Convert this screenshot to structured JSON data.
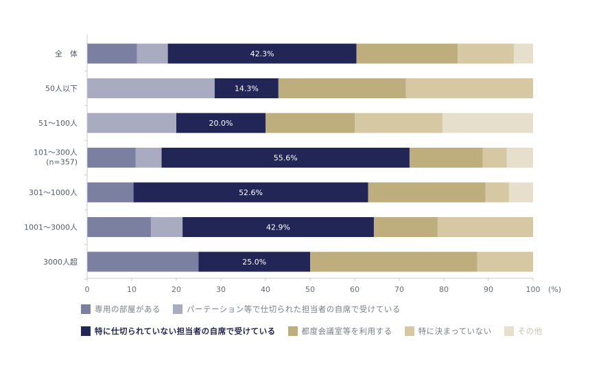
{
  "chart_data": {
    "type": "bar",
    "orientation": "horizontal",
    "stacked": true,
    "unit": "(%)",
    "xlim": [
      0,
      100
    ],
    "xticks": [
      "0",
      "10",
      "20",
      "30",
      "40",
      "50",
      "60",
      "70",
      "80",
      "90",
      "100"
    ],
    "categories": [
      "全　体",
      "50人以下",
      "51～100人",
      "101～300人\n(n=357)",
      "301～1000人",
      "1001～3000人",
      "3000人超"
    ],
    "series": [
      {
        "name": "専用の部屋がある",
        "color": "#7b7fa0",
        "values": [
          11.2,
          0,
          0,
          10.9,
          10.4,
          14.3,
          25.0
        ]
      },
      {
        "name": "パーテーション等で仕切られた担当者の自席で受けている",
        "color": "#a9abc0",
        "values": [
          6.9,
          28.6,
          20.0,
          5.8,
          0,
          7.1,
          0
        ]
      },
      {
        "name": "特に仕切られていない担当者の自席で受けている",
        "color": "#222656",
        "values": [
          42.3,
          14.3,
          20.0,
          55.6,
          52.6,
          42.9,
          25.0
        ]
      },
      {
        "name": "都度会議室等を利用する",
        "color": "#bfae7d",
        "values": [
          22.7,
          28.6,
          20.0,
          16.4,
          26.3,
          14.3,
          37.5
        ]
      },
      {
        "name": "特に決まっていない",
        "color": "#d5c8a2",
        "values": [
          12.6,
          28.5,
          19.7,
          5.4,
          5.3,
          21.4,
          12.5
        ]
      },
      {
        "name": "その他",
        "color": "#e6dfcb",
        "values": [
          4.3,
          0,
          20.3,
          5.9,
          5.4,
          0,
          0
        ]
      }
    ],
    "data_labels": [
      "42.3%",
      "14.3%",
      "20.0%",
      "55.6%",
      "52.6%",
      "42.9%",
      "25.0%"
    ],
    "labelled_series_index": 2,
    "legend_placement": "bottom",
    "grid": false
  }
}
